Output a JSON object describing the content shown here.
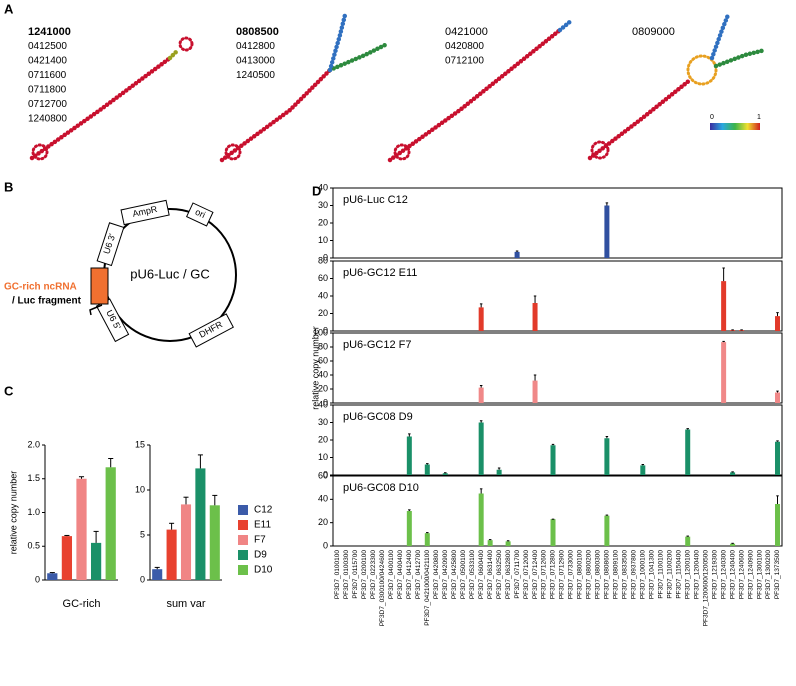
{
  "panel_labels": [
    "A",
    "B",
    "C",
    "D"
  ],
  "panel_a": {
    "structures": [
      {
        "labels": [
          "1241000",
          "0412500",
          "0421400",
          "0711600",
          "0711800",
          "0712700",
          "1240800"
        ],
        "bold": true
      },
      {
        "labels": [
          "0808500",
          "0412800",
          "0413000",
          "1240500"
        ],
        "bold": true
      },
      {
        "labels": [
          "0421000",
          "0420800",
          "0712100"
        ],
        "bold": false
      },
      {
        "labels": [
          "0809000"
        ],
        "bold": false
      }
    ],
    "colorbar": {
      "min": 0,
      "max": 1
    }
  },
  "panel_b": {
    "plasmid": "pU6-Luc / GC",
    "features": [
      "AmpR",
      "ori",
      "U6 3'",
      "U6 5'",
      "DHFR"
    ],
    "insert": [
      "GC-rich ncRNA",
      "/ Luc fragment"
    ]
  },
  "chart_data": [
    {
      "type": "bar",
      "x_label": "GC-rich",
      "y_label": "relative copy number",
      "ylim": [
        0,
        2
      ],
      "yticks": [
        0,
        0.5,
        {
          "value": 1,
          "label": "1.0"
        },
        1.5,
        {
          "value": 2,
          "label": "2.0"
        }
      ],
      "series": [
        {
          "name": "C12",
          "color": "#3b5ba9",
          "values": [
            0.1
          ],
          "errors": [
            0.01
          ]
        },
        {
          "name": "E11",
          "color": "#e8412f",
          "values": [
            0.65
          ],
          "errors": [
            0.01
          ]
        },
        {
          "name": "F7",
          "color": "#f08585",
          "values": [
            1.5
          ],
          "errors": [
            0.03
          ]
        },
        {
          "name": "D9",
          "color": "#1a9068",
          "values": [
            0.55
          ],
          "errors": [
            0.17
          ]
        },
        {
          "name": "D10",
          "color": "#6cc04a",
          "values": [
            1.67
          ],
          "errors": [
            0.13
          ]
        }
      ]
    },
    {
      "type": "bar",
      "x_label": "sum var",
      "ylim": [
        0,
        15
      ],
      "yticks": [
        0,
        5,
        10,
        15
      ],
      "series": [
        {
          "color": "#3b5ba9",
          "values": [
            1.2
          ],
          "errors": [
            0.2
          ]
        },
        {
          "color": "#e8412f",
          "values": [
            5.6
          ],
          "errors": [
            0.7
          ]
        },
        {
          "color": "#f08585",
          "values": [
            8.4
          ],
          "errors": [
            0.8
          ]
        },
        {
          "color": "#1a9068",
          "values": [
            12.4
          ],
          "errors": [
            1.5
          ]
        },
        {
          "color": "#6cc04a",
          "values": [
            8.3
          ],
          "errors": [
            1.1
          ]
        }
      ]
    },
    {
      "type": "bar",
      "title": "pU6-Luc C12",
      "color": "#3050a0",
      "ylim": [
        0,
        40
      ],
      "yticks": [
        0,
        10,
        20,
        30,
        40
      ],
      "values": [
        0,
        0,
        0,
        0,
        0,
        0,
        0,
        0,
        0,
        0,
        0,
        0,
        0,
        0,
        0,
        0,
        0,
        0,
        0,
        0,
        3.5,
        0,
        0,
        0,
        0,
        0,
        0,
        0,
        0,
        0,
        30,
        0,
        0,
        0,
        0,
        0,
        0,
        0,
        0,
        0,
        0,
        0,
        0,
        0,
        0,
        0,
        0,
        0,
        0,
        0
      ],
      "errors": [
        0,
        0,
        0,
        0,
        0,
        0,
        0,
        0,
        0,
        0,
        0,
        0,
        0,
        0,
        0,
        0,
        0,
        0,
        0,
        0,
        0.5,
        0,
        0,
        0,
        0,
        0,
        0,
        0,
        0,
        0,
        1.5,
        0,
        0,
        0,
        0,
        0,
        0,
        0,
        0,
        0,
        0,
        0,
        0,
        0,
        0,
        0,
        0,
        0,
        0,
        0
      ]
    },
    {
      "type": "bar",
      "title": "pU6-GC12 E11",
      "color": "#e23a2a",
      "ylim": [
        0,
        80
      ],
      "yticks": [
        0,
        20,
        40,
        60,
        80
      ],
      "values": [
        0,
        0,
        0,
        0,
        0,
        0,
        0,
        0,
        0,
        0,
        0,
        0,
        0,
        0,
        0,
        0,
        27,
        0,
        0,
        0,
        0,
        0,
        32,
        0,
        0,
        0,
        0,
        0,
        0,
        0,
        0,
        0,
        0,
        0,
        0,
        0,
        0,
        0,
        0,
        0,
        0,
        0,
        0,
        57,
        1,
        1,
        0,
        0,
        0,
        17
      ],
      "errors": [
        0,
        0,
        0,
        0,
        0,
        0,
        0,
        0,
        0,
        0,
        0,
        0,
        0,
        0,
        0,
        0,
        4,
        0,
        0,
        0,
        0,
        0,
        8,
        0,
        0,
        0,
        0,
        0,
        0,
        0,
        0,
        0,
        0,
        0,
        0,
        0,
        0,
        0,
        0,
        0,
        0,
        0,
        0,
        15,
        0.3,
        0.3,
        0,
        0,
        0,
        4
      ]
    },
    {
      "type": "bar",
      "title": "pU6-GC12 F7",
      "color": "#f08888",
      "ylim": [
        0,
        100
      ],
      "yticks": [
        0,
        20,
        40,
        60,
        80,
        100
      ],
      "values": [
        0,
        0,
        0,
        0,
        0,
        0,
        0,
        0,
        0,
        0,
        0,
        0,
        0,
        0,
        0,
        0,
        22,
        0,
        0,
        0,
        0,
        0,
        32,
        0,
        0,
        0,
        0,
        0,
        0,
        0,
        0,
        0,
        0,
        0,
        0,
        0,
        0,
        0,
        0,
        0,
        0,
        0,
        0,
        87,
        0,
        0,
        0,
        0,
        0,
        15
      ],
      "errors": [
        0,
        0,
        0,
        0,
        0,
        0,
        0,
        0,
        0,
        0,
        0,
        0,
        0,
        0,
        0,
        0,
        3,
        0,
        0,
        0,
        0,
        0,
        8,
        0,
        0,
        0,
        0,
        0,
        0,
        0,
        0,
        0,
        0,
        0,
        0,
        0,
        0,
        0,
        0,
        0,
        0,
        0,
        0,
        1,
        0,
        0,
        0,
        0,
        0,
        2
      ]
    },
    {
      "type": "bar",
      "title": "pU6-GC08 D9",
      "color": "#1a9068",
      "ylim": [
        0,
        40
      ],
      "yticks": [
        0,
        10,
        20,
        30,
        40
      ],
      "y_label": "relative copy number",
      "values": [
        0,
        0,
        0,
        0,
        0,
        0,
        0,
        0,
        22,
        0,
        6,
        0,
        1,
        0,
        0,
        0,
        30,
        0,
        3,
        0,
        0,
        0,
        0,
        0,
        17,
        0,
        0,
        0,
        0,
        0,
        21,
        0,
        0,
        0,
        5.5,
        0,
        0,
        0,
        0,
        26,
        0,
        0,
        0,
        0,
        1.5,
        0,
        0,
        0,
        0,
        19
      ],
      "errors": [
        0,
        0,
        0,
        0,
        0,
        0,
        0,
        0,
        1.5,
        0,
        0.5,
        0,
        0.3,
        0,
        0,
        0,
        1,
        0,
        1,
        0,
        0,
        0,
        0,
        0,
        0.5,
        0,
        0,
        0,
        0,
        0,
        1,
        0,
        0,
        0,
        0.5,
        0,
        0,
        0,
        0,
        0.5,
        0,
        0,
        0,
        0,
        0.3,
        0,
        0,
        0,
        0,
        0.5
      ]
    },
    {
      "type": "bar",
      "title": "pU6-GC08 D10",
      "color": "#6cc04a",
      "ylim": [
        0,
        60
      ],
      "yticks": [
        0,
        20,
        40,
        60
      ],
      "values": [
        0,
        0,
        0,
        0,
        0,
        0,
        0,
        0,
        30,
        0,
        11,
        0,
        0,
        0,
        0,
        0,
        45,
        5,
        0,
        4,
        0,
        0,
        0,
        0,
        23,
        0,
        0,
        0,
        0,
        0,
        26,
        0,
        0,
        0,
        0,
        0,
        0,
        0,
        0,
        8,
        0,
        0,
        0,
        0,
        2,
        0,
        0,
        0,
        0,
        36
      ],
      "errors": [
        0,
        0,
        0,
        0,
        0,
        0,
        0,
        0,
        1,
        0,
        0.5,
        0,
        0,
        0,
        0,
        0,
        4,
        0.5,
        0,
        0.5,
        0,
        0,
        0,
        0,
        0,
        0,
        0,
        0,
        0,
        0,
        0.5,
        0,
        0,
        0,
        0,
        0,
        0,
        0,
        0,
        0.5,
        0,
        0,
        0,
        0,
        0.3,
        0,
        0,
        0,
        0,
        7
      ],
      "categories": [
        "PF3D7_0100100",
        "PF3D7_0100300",
        "PF3D7_0115700",
        "PF3D7_0200100",
        "PF3D7_0223300",
        "PF3D7_0300100/0424600",
        "PF3D7_0400100",
        "PF3D7_0400400",
        "PF3D7_0412400",
        "PF3D7_0412700",
        "PF3D7_0421000/0421100",
        "PF3D7_0420800",
        "PF3D7_0420900",
        "PF3D7_0425800",
        "PF3D7_0500100",
        "PF3D7_0533100",
        "PF3D7_0600400",
        "PF3D7_0631400",
        "PF3D7_0632500",
        "PF3D7_0632800",
        "PF3D7_0711700",
        "PF3D7_0712000",
        "PF3D7_0712400",
        "PF3D7_0712600",
        "PF3D7_0712800",
        "PF3D7_0712900",
        "PF3D7_0733000",
        "PF3D7_0800100",
        "PF3D7_0800200",
        "PF3D7_0800300",
        "PF3D7_0808600",
        "PF3D7_0809100",
        "PF3D7_0833500",
        "PF3D7_0937800",
        "PF3D7_1000100",
        "PF3D7_1041300",
        "PF3D7_1100100",
        "PF3D7_1100200",
        "PF3D7_1150400",
        "PF3D7_1200100",
        "PF3D7_1200400",
        "PF3D7_1200600/1200500",
        "PF3D7_1219300",
        "PF3D7_1240300",
        "PF3D7_1240400",
        "PF3D7_1240600",
        "PF3D7_1240900",
        "PF3D7_1300100",
        "PF3D7_1300200",
        "PF3D7_1373500"
      ]
    }
  ]
}
